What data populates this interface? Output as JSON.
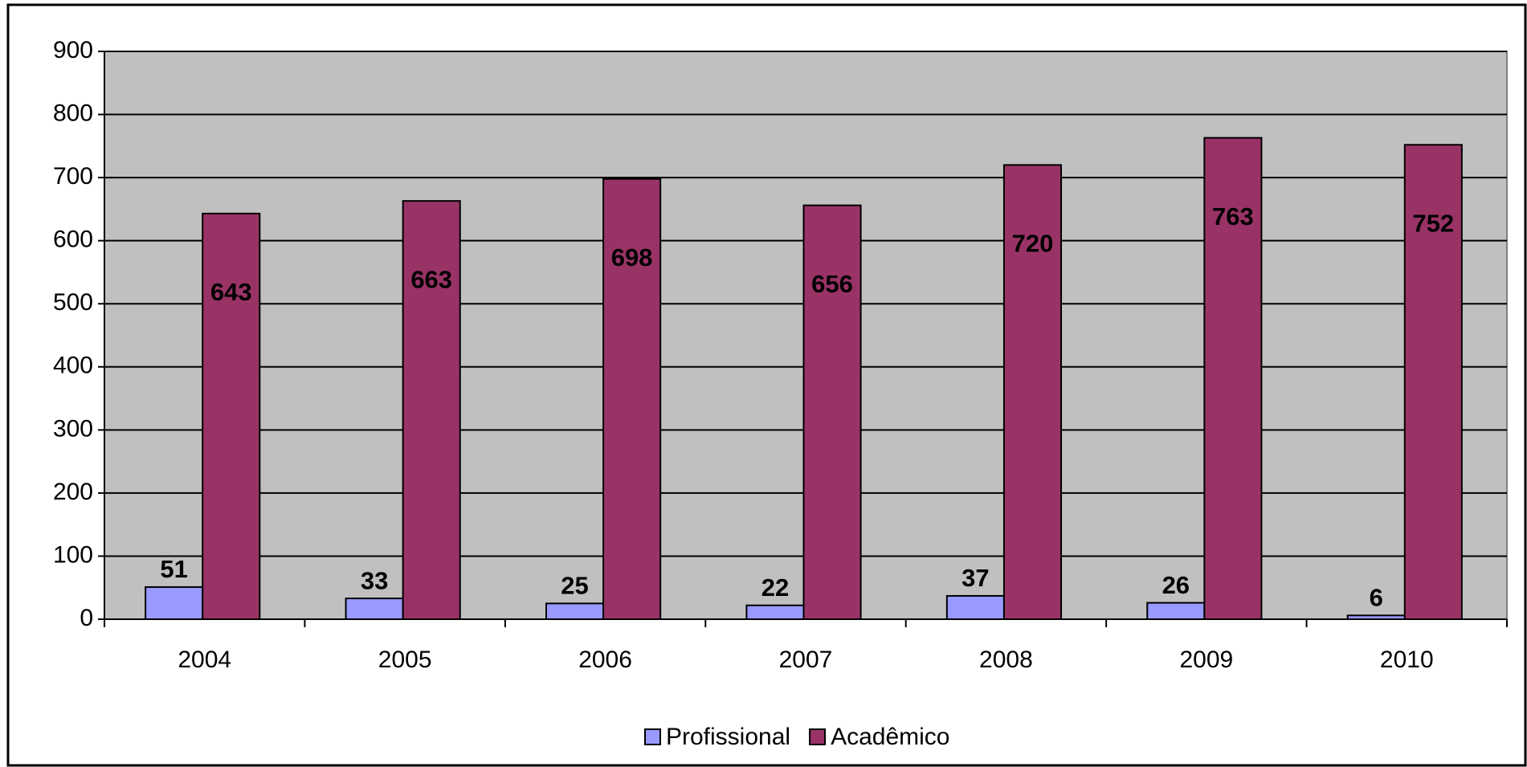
{
  "chart_data": {
    "type": "bar",
    "categories": [
      "2004",
      "2005",
      "2006",
      "2007",
      "2008",
      "2009",
      "2010"
    ],
    "series": [
      {
        "name": "Profissional",
        "color": "#9999ff",
        "values": [
          51,
          33,
          25,
          22,
          37,
          26,
          6
        ]
      },
      {
        "name": "Acadêmico",
        "color": "#993366",
        "values": [
          643,
          663,
          698,
          656,
          720,
          763,
          752
        ]
      }
    ],
    "ylim": [
      0,
      900
    ],
    "yticks": [
      0,
      100,
      200,
      300,
      400,
      500,
      600,
      700,
      800,
      900
    ],
    "grid": true,
    "legend": "bottom",
    "plot_background": "#c0c0c0"
  }
}
